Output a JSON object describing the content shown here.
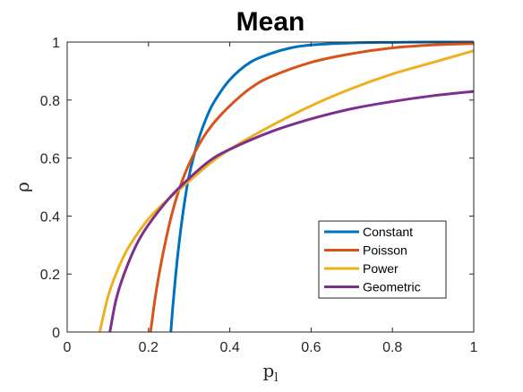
{
  "chart_data": {
    "type": "line",
    "title": "Mean",
    "xlabel": "p",
    "xlabel_subscript": "l",
    "ylabel": "ρ",
    "xlim": [
      0,
      1
    ],
    "ylim": [
      0,
      1
    ],
    "xticks": [
      "0",
      "0.2",
      "0.4",
      "0.6",
      "0.8",
      "1"
    ],
    "yticks": [
      "0",
      "0.2",
      "0.4",
      "0.6",
      "0.8",
      "1"
    ],
    "grid": false,
    "legend_position": "lower-right",
    "series": [
      {
        "name": "Constant",
        "color": "#0072BD",
        "x": [
          0.255,
          0.26,
          0.27,
          0.28,
          0.29,
          0.3,
          0.32,
          0.34,
          0.36,
          0.4,
          0.45,
          0.5,
          0.55,
          0.6,
          0.7,
          0.8,
          0.9,
          1.0
        ],
        "y": [
          0.0,
          0.09,
          0.24,
          0.36,
          0.46,
          0.54,
          0.65,
          0.73,
          0.79,
          0.87,
          0.93,
          0.96,
          0.98,
          0.99,
          0.997,
          0.999,
          1.0,
          1.0
        ]
      },
      {
        "name": "Poisson",
        "color": "#D95319",
        "x": [
          0.205,
          0.22,
          0.24,
          0.26,
          0.28,
          0.3,
          0.33,
          0.36,
          0.4,
          0.45,
          0.5,
          0.6,
          0.7,
          0.8,
          0.9,
          1.0
        ],
        "y": [
          0.0,
          0.15,
          0.3,
          0.42,
          0.51,
          0.58,
          0.66,
          0.72,
          0.78,
          0.84,
          0.88,
          0.93,
          0.96,
          0.98,
          0.99,
          0.995
        ]
      },
      {
        "name": "Power",
        "color": "#EDB120",
        "x": [
          0.08,
          0.1,
          0.12,
          0.15,
          0.2,
          0.25,
          0.3,
          0.35,
          0.4,
          0.5,
          0.6,
          0.7,
          0.8,
          0.9,
          1.0
        ],
        "y": [
          0.0,
          0.12,
          0.2,
          0.29,
          0.39,
          0.46,
          0.52,
          0.58,
          0.63,
          0.71,
          0.78,
          0.84,
          0.89,
          0.93,
          0.97
        ]
      },
      {
        "name": "Geometric",
        "color": "#7E2F8E",
        "x": [
          0.105,
          0.12,
          0.14,
          0.17,
          0.2,
          0.25,
          0.3,
          0.35,
          0.4,
          0.5,
          0.6,
          0.7,
          0.8,
          0.9,
          1.0
        ],
        "y": [
          0.0,
          0.11,
          0.2,
          0.3,
          0.37,
          0.46,
          0.53,
          0.59,
          0.63,
          0.69,
          0.735,
          0.77,
          0.795,
          0.815,
          0.83
        ]
      }
    ]
  }
}
